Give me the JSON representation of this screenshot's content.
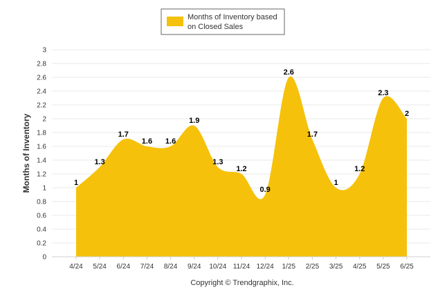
{
  "colors": {
    "area": "#f5c10a",
    "grid": "#e8e8e8",
    "axis": "#cfcfcf",
    "text": "#333333",
    "legend_border": "#666666"
  },
  "chart_data": {
    "type": "area",
    "curve": "smooth",
    "categories": [
      "4/24",
      "5/24",
      "6/24",
      "7/24",
      "8/24",
      "9/24",
      "10/24",
      "11/24",
      "12/24",
      "1/25",
      "2/25",
      "3/25",
      "4/25",
      "5/25",
      "6/25"
    ],
    "series": [
      {
        "name": "Months of Inventory based on Closed Sales",
        "values": [
          1,
          1.3,
          1.7,
          1.6,
          1.6,
          1.9,
          1.3,
          1.2,
          0.9,
          2.6,
          1.7,
          1,
          1.2,
          2.3,
          2
        ],
        "data_labels": [
          "1",
          "1.3",
          "1.7",
          "1.6",
          "1.6",
          "1.9",
          "1.3",
          "1.2",
          "0.9",
          "2.6",
          "1.7",
          "1",
          "1.2",
          "2.3",
          "2"
        ]
      }
    ],
    "ylabel": "Months of Inventory",
    "xlabel": "",
    "ylim": [
      0,
      3
    ],
    "yticks": [
      "0",
      "0.2",
      "0.4",
      "0.6",
      "0.8",
      "1",
      "1.2",
      "1.4",
      "1.6",
      "1.8",
      "2",
      "2.2",
      "2.4",
      "2.6",
      "2.8",
      "3"
    ],
    "grid": true,
    "legend": {
      "position": "top-center",
      "label_line1": "Months of Inventory based",
      "label_line2": "on Closed Sales"
    },
    "footer": "Copyright © Trendgraphix, Inc."
  }
}
